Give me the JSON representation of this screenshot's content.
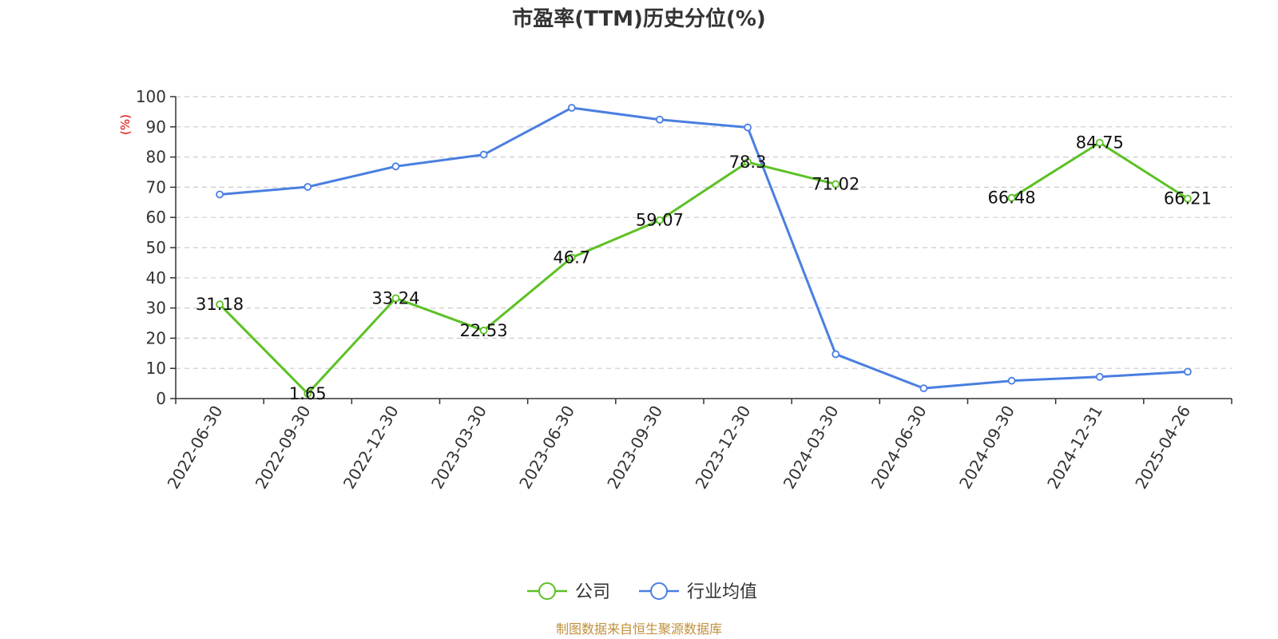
{
  "chart_data": {
    "type": "line",
    "title": "市盈率(TTM)历史分位(%)",
    "ylabel": "(%)",
    "ylim": [
      0,
      100
    ],
    "yticks": [
      0,
      10,
      20,
      30,
      40,
      50,
      60,
      70,
      80,
      90,
      100
    ],
    "grid": true,
    "legend_position": "bottom-center",
    "categories": [
      "2022-06-30",
      "2022-09-30",
      "2022-12-30",
      "2023-03-30",
      "2023-06-30",
      "2023-09-30",
      "2023-12-30",
      "2024-03-30",
      "2024-06-30",
      "2024-09-30",
      "2024-12-31",
      "2025-04-26"
    ],
    "series": [
      {
        "name": "公司",
        "color": "#5cc124",
        "show_labels": true,
        "values": [
          31.18,
          1.65,
          33.24,
          22.53,
          46.7,
          59.07,
          78.3,
          71.02,
          null,
          66.48,
          84.75,
          66.21
        ]
      },
      {
        "name": "行业均值",
        "color": "#4a7fe0",
        "show_labels": false,
        "values": [
          67.6,
          70.1,
          76.9,
          80.8,
          96.3,
          92.4,
          89.8,
          14.7,
          3.4,
          5.9,
          7.2,
          8.9
        ]
      }
    ],
    "source": "制图数据来自恒生聚源数据库"
  }
}
